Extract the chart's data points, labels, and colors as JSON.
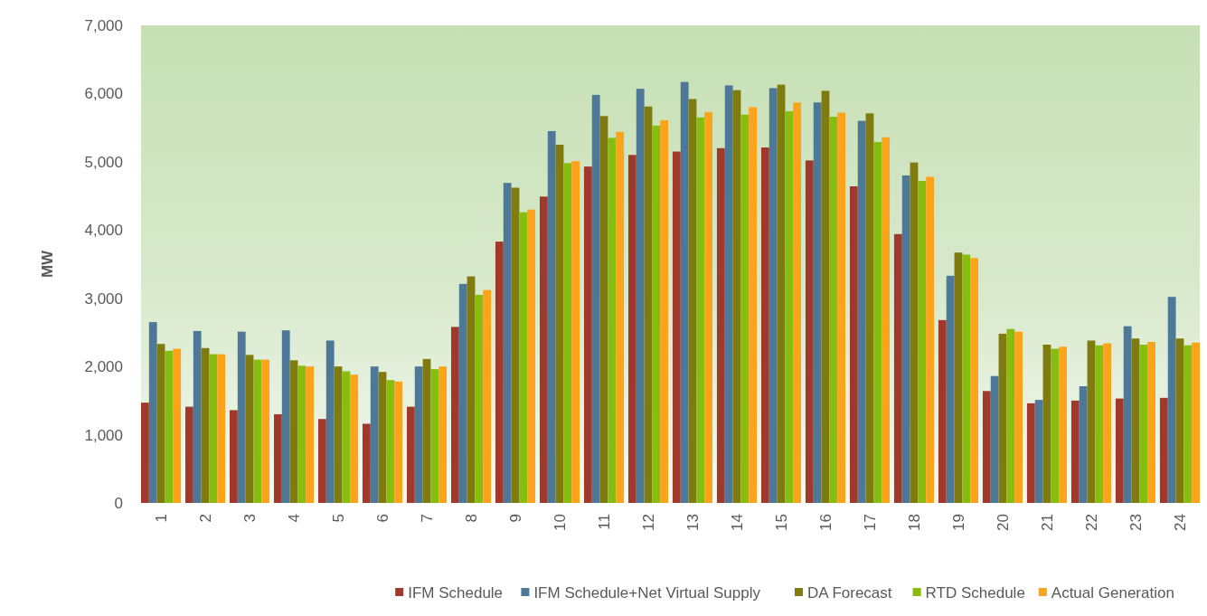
{
  "chart_data": {
    "type": "bar",
    "ylabel": "MW",
    "categories": [
      "1",
      "2",
      "3",
      "4",
      "5",
      "6",
      "7",
      "8",
      "9",
      "10",
      "11",
      "12",
      "13",
      "14",
      "15",
      "16",
      "17",
      "18",
      "19",
      "20",
      "21",
      "22",
      "23",
      "24"
    ],
    "series": [
      {
        "name": "IFM Schedule",
        "color": "#a0392b",
        "values": [
          1470,
          1410,
          1360,
          1300,
          1230,
          1160,
          1410,
          2580,
          3830,
          4490,
          4930,
          5100,
          5150,
          5200,
          5210,
          5020,
          4640,
          3940,
          2680,
          1640,
          1460,
          1500,
          1530,
          1540
        ]
      },
      {
        "name": "IFM Schedule+Net Virtual Supply",
        "color": "#4e7898",
        "values": [
          2650,
          2520,
          2510,
          2530,
          2380,
          2000,
          2000,
          3210,
          4690,
          5450,
          5980,
          6070,
          6170,
          6120,
          6080,
          5870,
          5600,
          4800,
          3330,
          1860,
          1510,
          1710,
          2590,
          3020
        ]
      },
      {
        "name": "DA Forecast",
        "color": "#7f7b0f",
        "values": [
          2330,
          2270,
          2170,
          2090,
          2000,
          1920,
          2110,
          3320,
          4620,
          5250,
          5670,
          5810,
          5920,
          6050,
          6130,
          6040,
          5710,
          4990,
          3670,
          2480,
          2320,
          2380,
          2410,
          2410
        ]
      },
      {
        "name": "RTD Schedule",
        "color": "#86bd0e",
        "values": [
          2230,
          2180,
          2100,
          2010,
          1930,
          1800,
          1960,
          3050,
          4260,
          4980,
          5350,
          5530,
          5650,
          5690,
          5740,
          5660,
          5290,
          4720,
          3640,
          2550,
          2260,
          2310,
          2320,
          2310
        ]
      },
      {
        "name": "Actual Generation",
        "color": "#fba41b",
        "values": [
          2260,
          2180,
          2100,
          2000,
          1880,
          1780,
          2000,
          3120,
          4300,
          5010,
          5440,
          5610,
          5730,
          5800,
          5870,
          5720,
          5360,
          4780,
          3590,
          2510,
          2290,
          2340,
          2360,
          2350
        ]
      }
    ],
    "ylim": [
      0,
      7000
    ],
    "yticks": [
      {
        "value": 0,
        "label": "0"
      },
      {
        "value": 1000,
        "label": "1,000"
      },
      {
        "value": 2000,
        "label": "2,000"
      },
      {
        "value": 3000,
        "label": "3,000"
      },
      {
        "value": 4000,
        "label": "4,000"
      },
      {
        "value": 5000,
        "label": "5,000"
      },
      {
        "value": 6000,
        "label": "6,000"
      },
      {
        "value": 7000,
        "label": "7,000"
      }
    ],
    "legend": "bottom"
  }
}
